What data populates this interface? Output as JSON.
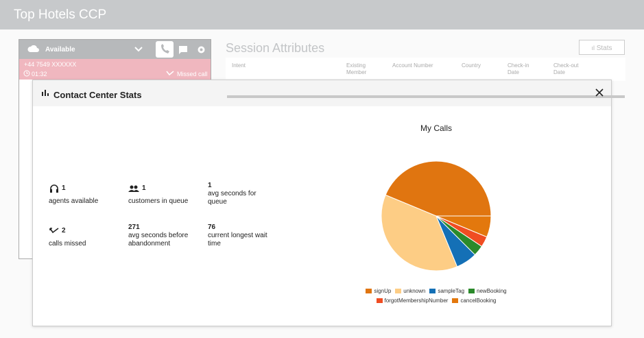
{
  "header": {
    "title": "Top Hotels CCP"
  },
  "ccp": {
    "status": "Available",
    "phone": "+44 7549 XXXXXX",
    "timer": "01:32",
    "call_state": "Missed call"
  },
  "session": {
    "title": "Session Attributes",
    "stats_button": "Stats",
    "columns": [
      "Intent",
      "Existing Member",
      "Account Number",
      "Country",
      "Check-in Date",
      "Check-out Date"
    ]
  },
  "modal": {
    "title": "Contact Center Stats",
    "stats": [
      {
        "value": "1",
        "label": "agents available"
      },
      {
        "value": "1",
        "label": "customers in queue"
      },
      {
        "value": "1",
        "label": "avg seconds for queue"
      },
      {
        "value": "2",
        "label": "calls missed"
      },
      {
        "value": "271",
        "label": "avg seconds before abandonment"
      },
      {
        "value": "76",
        "label": "current longest wait time"
      }
    ]
  },
  "chart_data": {
    "type": "pie",
    "title": "My Calls",
    "categories": [
      "signUp",
      "unknown",
      "sampleTag",
      "newBooking",
      "forgotMembershipNumber",
      "cancelBooking"
    ],
    "values": [
      14,
      12,
      2,
      1,
      1,
      2
    ],
    "colors": [
      "#e07510",
      "#fdcd85",
      "#1470b6",
      "#2b8a2b",
      "#f04d22",
      "#e3780d"
    ]
  }
}
